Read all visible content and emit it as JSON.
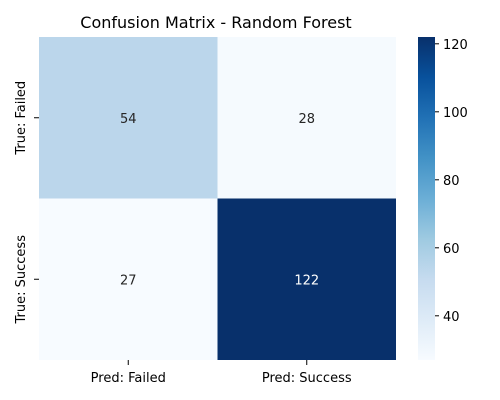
{
  "chart_data": {
    "type": "heatmap",
    "title": "Confusion Matrix - Random Forest",
    "xlabel": "",
    "ylabel": "",
    "x_categories": [
      "Pred: Failed",
      "Pred: Success"
    ],
    "y_categories": [
      "True: Failed",
      "True: Success"
    ],
    "values": [
      [
        54,
        28
      ],
      [
        27,
        122
      ]
    ],
    "colormap": "Blues",
    "color_range": [
      27,
      122
    ],
    "colorbar_ticks": [
      40,
      60,
      80,
      100,
      120
    ],
    "grid": false,
    "legend": "colorbar-right"
  }
}
